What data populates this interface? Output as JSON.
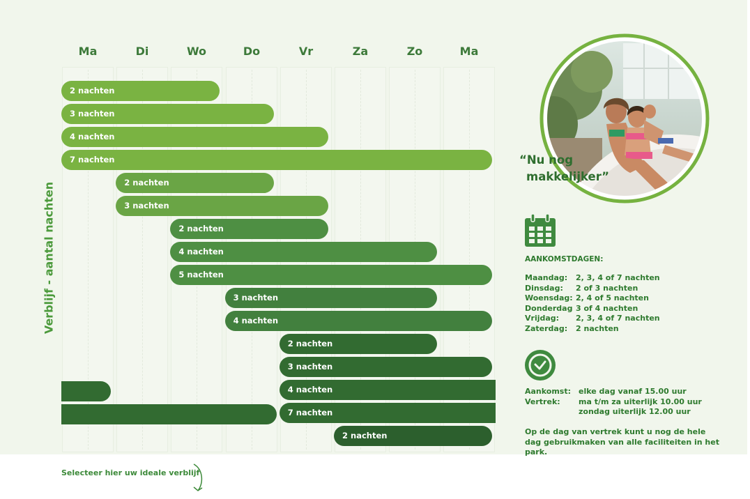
{
  "days": [
    "Ma",
    "Di",
    "Wo",
    "Do",
    "Vr",
    "Za",
    "Zo",
    "Ma"
  ],
  "y_axis_label": "Verblijf - aantal nachten",
  "chart_data": {
    "type": "bar",
    "orientation": "horizontal-gantt",
    "ylabel": "Verblijf - aantal nachten",
    "categories": [
      "Ma",
      "Di",
      "Wo",
      "Do",
      "Vr",
      "Za",
      "Zo",
      "Ma"
    ],
    "bars": [
      {
        "label": "2 nachten",
        "start_day": "Ma",
        "nights": 2,
        "color": "#7ab342"
      },
      {
        "label": "3 nachten",
        "start_day": "Ma",
        "nights": 3,
        "color": "#7ab342"
      },
      {
        "label": "4 nachten",
        "start_day": "Ma",
        "nights": 4,
        "color": "#7ab342"
      },
      {
        "label": "7 nachten",
        "start_day": "Ma",
        "nights": 7,
        "color": "#7ab342"
      },
      {
        "label": "2 nachten",
        "start_day": "Di",
        "nights": 2,
        "color": "#6aa545"
      },
      {
        "label": "3 nachten",
        "start_day": "Di",
        "nights": 3,
        "color": "#6aa545"
      },
      {
        "label": "2 nachten",
        "start_day": "Wo",
        "nights": 2,
        "color": "#4e8f43"
      },
      {
        "label": "4 nachten",
        "start_day": "Wo",
        "nights": 4,
        "color": "#4e8f43"
      },
      {
        "label": "5 nachten",
        "start_day": "Wo",
        "nights": 5,
        "color": "#4e8f43"
      },
      {
        "label": "3 nachten",
        "start_day": "Do",
        "nights": 3,
        "color": "#42803e"
      },
      {
        "label": "4 nachten",
        "start_day": "Do",
        "nights": 4,
        "color": "#42803e"
      },
      {
        "label": "2 nachten",
        "start_day": "Vr",
        "nights": 2,
        "color": "#326b31"
      },
      {
        "label": "3 nachten",
        "start_day": "Vr",
        "nights": 3,
        "color": "#326b31"
      },
      {
        "label": "4 nachten",
        "start_day": "Vr",
        "nights": 4,
        "color": "#326b31"
      },
      {
        "label": "7 nachten",
        "start_day": "Vr",
        "nights": 7,
        "color": "#326b31"
      },
      {
        "label": "2 nachten",
        "start_day": "Za",
        "nights": 2,
        "color": "#2c5f2d"
      }
    ]
  },
  "quote": {
    "line1": "“Nu nog",
    "line2": "makkelijker”"
  },
  "arrival": {
    "heading": "AANKOMSTDAGEN:",
    "rows": [
      {
        "day": "Maandag:",
        "nights": "2, 3, 4 of 7 nachten"
      },
      {
        "day": "Dinsdag:",
        "nights": "2 of 3 nachten"
      },
      {
        "day": "Woensdag:",
        "nights": "2, 4 of 5 nachten"
      },
      {
        "day": "Donderdag",
        "nights": "3 of 4 nachten"
      },
      {
        "day": "Vrijdag:",
        "nights": "2, 3, 4 of 7 nachten"
      },
      {
        "day": "Zaterdag:",
        "nights": "2 nachten"
      }
    ]
  },
  "times": {
    "arrival_label": "Aankomst:",
    "arrival_value": "elke dag vanaf 15.00 uur",
    "departure_label": "Vertrek:",
    "departure_value_1": "ma t/m za uiterlijk 10.00 uur",
    "departure_value_2": "zondag uiterlijk 12.00 uur"
  },
  "note": "Op de dag van vertrek kunt u nog de hele dag gebruikmaken van alle faciliteiten in het park.",
  "footer_link": "Selecteer hier uw ideale verblijf",
  "icons": {
    "calendar": "calendar-icon",
    "clock": "clock-icon",
    "arrow": "curved-arrow-down-icon"
  }
}
